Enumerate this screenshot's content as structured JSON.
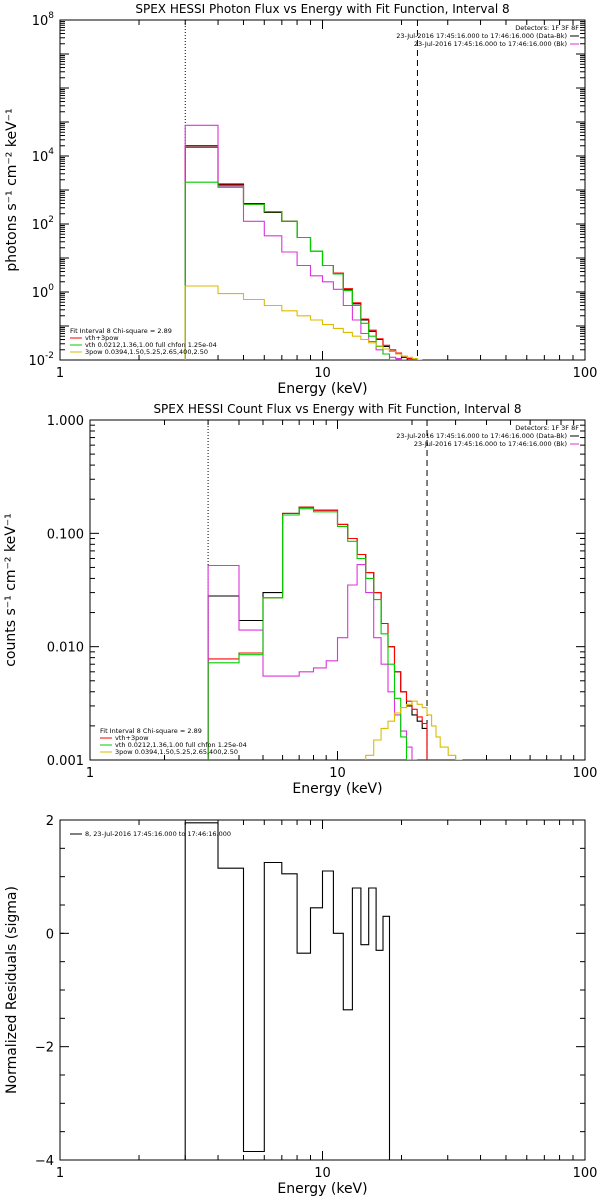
{
  "chart_data": [
    {
      "type": "line",
      "title": "SPEX HESSI Photon Flux vs Energy with Fit Function, Interval 8",
      "xlabel": "Energy (keV)",
      "ylabel": "photons s⁻¹ cm⁻² keV⁻¹",
      "xscale": "log",
      "yscale": "log",
      "xlim": [
        1,
        100
      ],
      "ylim": [
        0.01,
        100000000
      ],
      "xticks": [
        {
          "v": 1,
          "label": "1"
        },
        {
          "v": 10,
          "label": "10"
        },
        {
          "v": 100,
          "label": "100"
        }
      ],
      "yticks": [
        {
          "v": 0.01,
          "label": "10",
          "exp": "-2"
        },
        {
          "v": 1,
          "label": "10",
          "exp": "0"
        },
        {
          "v": 100,
          "label": "10",
          "exp": "2"
        },
        {
          "v": 10000,
          "label": "10",
          "exp": "4"
        },
        {
          "v": 100000000,
          "label": "10",
          "exp": "8"
        }
      ],
      "vlines": [
        {
          "x": 3.0,
          "style": "dotted"
        },
        {
          "x": 23.0,
          "style": "dashed"
        }
      ],
      "legend_top": {
        "position": "top-right",
        "header": "Detectors: 1F 3F 8F",
        "entries": [
          {
            "label": "23-Jul-2016 17:45:16.000 to 17:46:16.000 (Data-Bk)",
            "color": "#000000"
          },
          {
            "label": "23-Jul-2016 17:45:16.000 to 17:46:16.000 (Bk)",
            "color": "#dd33dd"
          }
        ]
      },
      "legend_bottom": {
        "position": "bottom-left",
        "header": "Fit Interval 8   Chi-square = 2.89",
        "entries": [
          {
            "label": "vth+3pow",
            "color": "#ff0000"
          },
          {
            "label": "vth 0.0212,1.36,1.00  full chfon 1.25e-04",
            "color": "#00cc00"
          },
          {
            "label": "3pow 0.0394,1.50,5.25,2.65,400,2.50",
            "color": "#ddbb00"
          }
        ]
      },
      "edges": [
        3,
        4,
        5,
        6,
        7,
        8,
        9,
        10,
        11,
        12,
        13,
        14,
        15,
        16,
        17,
        18,
        19,
        20,
        21,
        22,
        23,
        24,
        25,
        26,
        28,
        30
      ],
      "series": [
        {
          "name": "Data-Bk",
          "color": "#000000",
          "values": [
            20000,
            1500,
            400,
            220,
            120,
            40,
            16,
            6,
            3.5,
            1.2,
            0.45,
            0.15,
            0.07,
            0.04,
            0.025,
            0.018,
            0.015,
            0.012,
            0.01,
            null,
            null,
            null,
            null,
            null,
            null
          ]
        },
        {
          "name": "vth+3pow",
          "color": "#ff0000",
          "values": [
            18000,
            1400,
            380,
            230,
            120,
            40,
            16,
            6,
            3.6,
            1.25,
            0.48,
            0.16,
            0.075,
            0.042,
            0.027,
            0.02,
            0.016,
            0.013,
            0.011,
            null,
            null,
            null,
            null,
            null,
            null
          ]
        },
        {
          "name": "Bk",
          "color": "#dd33dd",
          "values": [
            80000,
            1300,
            120,
            45,
            15,
            6,
            3,
            2,
            1.2,
            0.4,
            0.15,
            0.06,
            0.035,
            0.02,
            0.015,
            0.012,
            0.011,
            0.01,
            null,
            null,
            null,
            null,
            null,
            null,
            null
          ]
        },
        {
          "name": "vth",
          "color": "#00cc00",
          "values": [
            1700,
            1200,
            380,
            230,
            120,
            40,
            16,
            6,
            3.4,
            1.1,
            0.4,
            0.12,
            0.05,
            0.025,
            0.015,
            0.01,
            null,
            null,
            null,
            null,
            null,
            null,
            null,
            null,
            null
          ]
        },
        {
          "name": "3pow",
          "color": "#ddbb00",
          "values": [
            1.5,
            0.9,
            0.6,
            0.4,
            0.28,
            0.2,
            0.15,
            0.11,
            0.085,
            0.065,
            0.05,
            0.04,
            0.032,
            0.026,
            0.021,
            0.018,
            0.015,
            0.013,
            0.012,
            0.011,
            0.01,
            null,
            null,
            null,
            null
          ]
        }
      ]
    },
    {
      "type": "line",
      "title": "SPEX HESSI Count Flux vs Energy with Fit Function, Interval 8",
      "xlabel": "Energy (keV)",
      "ylabel": "counts s⁻¹ cm⁻² keV⁻¹",
      "xscale": "log",
      "yscale": "log",
      "xlim": [
        1,
        100
      ],
      "ylim": [
        0.001,
        1.0
      ],
      "xticks": [
        {
          "v": 1,
          "label": "1"
        },
        {
          "v": 10,
          "label": "10"
        },
        {
          "v": 100,
          "label": "100"
        }
      ],
      "yticks": [
        {
          "v": 0.001,
          "label": "0.001"
        },
        {
          "v": 0.01,
          "label": "0.010"
        },
        {
          "v": 0.1,
          "label": "0.100"
        },
        {
          "v": 1.0,
          "label": "1.000"
        }
      ],
      "vlines": [
        {
          "x": 3.0,
          "style": "dotted"
        },
        {
          "x": 23.0,
          "style": "dashed"
        }
      ],
      "legend_top": {
        "position": "top-right",
        "header": "Detectors: 1F 3F 8F",
        "entries": [
          {
            "label": "23-Jul-2016 17:45:16.000 to 17:46:16.000 (Data-Bk)",
            "color": "#000000"
          },
          {
            "label": "23-Jul-2016 17:45:16.000 to 17:46:16.000 (Bk)",
            "color": "#dd33dd"
          }
        ]
      },
      "legend_bottom": {
        "position": "bottom-left",
        "header": "Fit Interval 8   Chi-square = 2.89",
        "entries": [
          {
            "label": "vth+3pow",
            "color": "#ff0000"
          },
          {
            "label": "vth 0.0212,1.36,1.00  full chfon 1.25e-04",
            "color": "#00cc00"
          },
          {
            "label": "3pow 0.0394,1.50,5.25,2.65,400,2.50",
            "color": "#ddbb00"
          }
        ]
      },
      "edges": [
        3,
        4,
        5,
        6,
        7,
        8,
        9,
        10,
        11,
        12,
        13,
        14,
        15,
        16,
        17,
        18,
        19,
        20,
        21,
        22,
        23,
        24,
        25,
        26,
        28,
        30,
        32,
        34,
        36,
        38
      ],
      "series": [
        {
          "name": "Data-Bk",
          "color": "#000000",
          "values": [
            0.028,
            0.017,
            0.03,
            0.15,
            0.17,
            0.16,
            0.16,
            0.12,
            0.09,
            0.065,
            0.045,
            0.03,
            0.016,
            0.01,
            0.006,
            0.004,
            0.003,
            0.0025,
            0.0022,
            0.0019,
            null,
            null,
            null,
            null,
            null,
            null,
            null,
            null,
            null
          ]
        },
        {
          "name": "vth+3pow",
          "color": "#ff0000",
          "values": [
            0.0078,
            0.0088,
            0.027,
            0.15,
            0.17,
            0.16,
            0.16,
            0.12,
            0.09,
            0.065,
            0.045,
            0.03,
            0.016,
            0.01,
            0.006,
            0.004,
            0.0033,
            0.0028,
            0.0024,
            0.0021,
            null,
            null,
            null,
            null,
            null,
            null,
            null,
            null,
            null
          ]
        },
        {
          "name": "Bk",
          "color": "#dd33dd",
          "values": [
            0.052,
            0.014,
            0.0055,
            0.0055,
            0.006,
            0.0065,
            0.0075,
            0.012,
            0.035,
            0.053,
            0.03,
            0.012,
            0.007,
            0.004,
            0.0025,
            0.0018,
            0.0013,
            0.001,
            null,
            null,
            null,
            null,
            null,
            null,
            null,
            null,
            null,
            null,
            null
          ]
        },
        {
          "name": "vth",
          "color": "#00cc00",
          "values": [
            0.0072,
            0.0085,
            0.027,
            0.145,
            0.165,
            0.155,
            0.155,
            0.115,
            0.085,
            0.06,
            0.04,
            0.026,
            0.013,
            0.007,
            0.0035,
            0.0016,
            0.001,
            null,
            null,
            null,
            null,
            null,
            null,
            null,
            null,
            null,
            null,
            null,
            null
          ]
        },
        {
          "name": "3pow",
          "color": "#ddbb00",
          "values": [
            null,
            null,
            null,
            null,
            null,
            null,
            null,
            null,
            null,
            null,
            0.0011,
            0.0015,
            0.0019,
            0.0022,
            0.0026,
            0.0029,
            0.0031,
            0.0033,
            0.0031,
            0.0029,
            0.0025,
            0.002,
            0.0016,
            0.0013,
            0.0011,
            0.001,
            null,
            null,
            null
          ]
        }
      ]
    },
    {
      "type": "line",
      "title": "",
      "xlabel": "Energy (keV)",
      "ylabel": "Normalized Residuals (sigma)",
      "xscale": "log",
      "yscale": "linear",
      "xlim": [
        1,
        100
      ],
      "ylim": [
        -4,
        2
      ],
      "xticks": [
        {
          "v": 1,
          "label": "1"
        },
        {
          "v": 10,
          "label": "10"
        },
        {
          "v": 100,
          "label": "100"
        }
      ],
      "yticks": [
        {
          "v": -4,
          "label": "−4"
        },
        {
          "v": -2,
          "label": "−2"
        },
        {
          "v": 0,
          "label": "0"
        },
        {
          "v": 2,
          "label": "2"
        }
      ],
      "vlines": [],
      "legend_top": {
        "position": "top-left",
        "header": "",
        "entries": [
          {
            "label": "8, 23-Jul-2016 17:45:16.000 to 17:46:16.000",
            "color": "#000000"
          }
        ]
      },
      "legend_bottom": null,
      "edges": [
        3,
        4,
        5,
        6,
        7,
        8,
        9,
        10,
        11,
        12,
        13,
        14,
        15,
        16,
        17,
        18,
        19,
        20,
        21,
        22,
        23
      ],
      "series": [
        {
          "name": "residuals",
          "color": "#000000",
          "values": [
            1.95,
            1.15,
            -3.85,
            1.25,
            1.05,
            -0.35,
            0.45,
            1.1,
            0.0,
            -1.35,
            0.8,
            -0.2,
            0.8,
            -0.3,
            0.3,
            null,
            null,
            null,
            null,
            null
          ]
        }
      ]
    }
  ]
}
